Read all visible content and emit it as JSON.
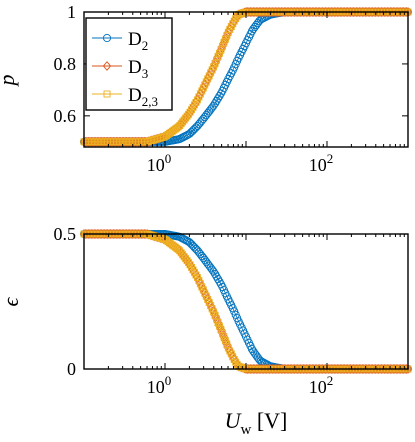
{
  "chart_data": [
    {
      "type": "scatter",
      "title": "",
      "xlabel": "",
      "ylabel": "p",
      "xscale": "log",
      "xlim": [
        0.1,
        1000
      ],
      "ylim": [
        0.48,
        1.0
      ],
      "xticks": [
        1,
        100
      ],
      "xtick_labels": [
        "10^0",
        "10^2"
      ],
      "yticks": [
        0.6,
        0.8,
        1.0
      ],
      "ytick_labels": [
        "0.6",
        "0.8",
        "1"
      ],
      "legend_position": "top-left",
      "series": [
        {
          "name": "D_2",
          "color": "#0072BD",
          "marker": "circle",
          "x": [
            0.1,
            0.3,
            0.6,
            1.0,
            1.5,
            2.0,
            2.5,
            3.0,
            4.0,
            5.0,
            6.0,
            7.0,
            8.0,
            10,
            12,
            15,
            20,
            30,
            100,
            1000
          ],
          "y": [
            0.5,
            0.5,
            0.5,
            0.5,
            0.51,
            0.53,
            0.56,
            0.59,
            0.64,
            0.69,
            0.74,
            0.78,
            0.82,
            0.88,
            0.93,
            0.97,
            0.99,
            1.0,
            1.0,
            1.0
          ]
        },
        {
          "name": "D_3",
          "color": "#D95319",
          "marker": "diamond",
          "x": [
            0.1,
            0.3,
            0.6,
            1.0,
            1.5,
            2.0,
            2.5,
            3.0,
            4.0,
            5.0,
            6.0,
            7.0,
            8.0,
            10,
            15,
            100,
            1000
          ],
          "y": [
            0.5,
            0.5,
            0.5,
            0.52,
            0.56,
            0.61,
            0.66,
            0.71,
            0.79,
            0.86,
            0.92,
            0.96,
            0.99,
            1.0,
            1.0,
            1.0,
            1.0
          ]
        },
        {
          "name": "D_2,3",
          "color": "#EDB120",
          "marker": "square",
          "x": [
            0.1,
            0.3,
            0.6,
            1.0,
            1.5,
            2.0,
            2.5,
            3.0,
            4.0,
            5.0,
            6.0,
            7.0,
            8.0,
            10,
            15,
            100,
            1000
          ],
          "y": [
            0.5,
            0.5,
            0.5,
            0.52,
            0.56,
            0.61,
            0.66,
            0.71,
            0.79,
            0.86,
            0.92,
            0.96,
            0.99,
            1.0,
            1.0,
            1.0,
            1.0
          ]
        }
      ]
    },
    {
      "type": "scatter",
      "title": "",
      "xlabel": "U_w [V]",
      "ylabel": "ϵ",
      "xscale": "log",
      "xlim": [
        0.1,
        1000
      ],
      "ylim": [
        0,
        0.5
      ],
      "xticks": [
        1,
        100
      ],
      "xtick_labels": [
        "10^0",
        "10^2"
      ],
      "yticks": [
        0,
        0.5
      ],
      "ytick_labels": [
        "0",
        "0.5"
      ],
      "series": [
        {
          "name": "D_2",
          "color": "#0072BD",
          "marker": "circle",
          "x": [
            0.1,
            0.3,
            0.6,
            1.0,
            1.5,
            2.0,
            2.5,
            3.0,
            4.0,
            5.0,
            6.0,
            7.0,
            8.0,
            10,
            12,
            15,
            20,
            30,
            100,
            1000
          ],
          "y": [
            0.5,
            0.5,
            0.5,
            0.5,
            0.49,
            0.47,
            0.44,
            0.41,
            0.36,
            0.31,
            0.26,
            0.22,
            0.18,
            0.12,
            0.07,
            0.03,
            0.01,
            0.0,
            0.0,
            0.0
          ]
        },
        {
          "name": "D_3",
          "color": "#D95319",
          "marker": "diamond",
          "x": [
            0.1,
            0.3,
            0.6,
            1.0,
            1.5,
            2.0,
            2.5,
            3.0,
            4.0,
            5.0,
            6.0,
            7.0,
            8.0,
            10,
            15,
            100,
            1000
          ],
          "y": [
            0.5,
            0.5,
            0.5,
            0.48,
            0.44,
            0.39,
            0.34,
            0.29,
            0.21,
            0.14,
            0.08,
            0.04,
            0.01,
            0.0,
            0.0,
            0.0,
            0.0
          ]
        },
        {
          "name": "D_2,3",
          "color": "#EDB120",
          "marker": "square",
          "x": [
            0.1,
            0.3,
            0.6,
            1.0,
            1.5,
            2.0,
            2.5,
            3.0,
            4.0,
            5.0,
            6.0,
            7.0,
            8.0,
            10,
            15,
            100,
            1000
          ],
          "y": [
            0.5,
            0.5,
            0.5,
            0.48,
            0.44,
            0.39,
            0.34,
            0.29,
            0.21,
            0.14,
            0.08,
            0.04,
            0.01,
            0.0,
            0.0,
            0.0,
            0.0
          ]
        }
      ]
    }
  ],
  "legend": {
    "entries": [
      {
        "base": "D",
        "sub": "2",
        "color": "#0072BD",
        "marker": "circle"
      },
      {
        "base": "D",
        "sub": "3",
        "color": "#D95319",
        "marker": "diamond"
      },
      {
        "base": "D",
        "sub": "2,3",
        "color": "#EDB120",
        "marker": "square"
      }
    ]
  },
  "labels": {
    "top_ylabel": "p",
    "bottom_ylabel": "ϵ",
    "xlabel_main": "U",
    "xlabel_sub": "w",
    "xlabel_unit": "[V]"
  }
}
